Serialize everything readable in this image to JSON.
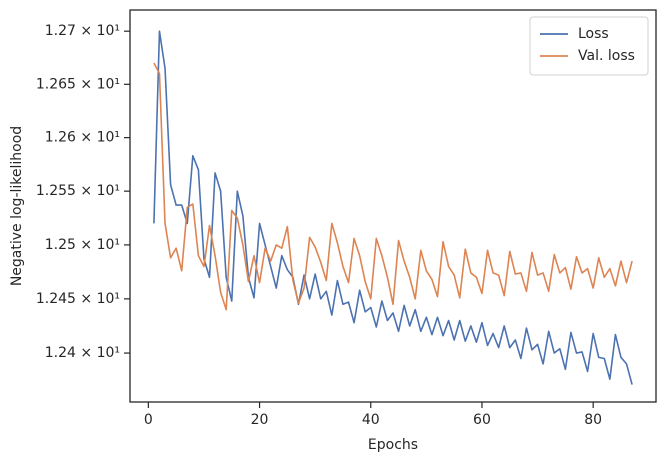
{
  "chart_data": {
    "type": "line",
    "xlabel": "Epochs",
    "ylabel": "Negative log-likelihood",
    "x": [
      1,
      2,
      3,
      4,
      5,
      6,
      7,
      8,
      9,
      10,
      11,
      12,
      13,
      14,
      15,
      16,
      17,
      18,
      19,
      20,
      21,
      22,
      23,
      24,
      25,
      26,
      27,
      28,
      29,
      30,
      31,
      32,
      33,
      34,
      35,
      36,
      37,
      38,
      39,
      40,
      41,
      42,
      43,
      44,
      45,
      46,
      47,
      48,
      49,
      50,
      51,
      52,
      53,
      54,
      55,
      56,
      57,
      58,
      59,
      60,
      61,
      62,
      63,
      64,
      65,
      66,
      67,
      68,
      69,
      70,
      71,
      72,
      73,
      74,
      75,
      76,
      77,
      78,
      79,
      80,
      81,
      82,
      83,
      84,
      85,
      86,
      87
    ],
    "series": [
      {
        "name": "Loss",
        "color": "#4c72b0",
        "values": [
          12.52,
          12.7,
          12.665,
          12.556,
          12.537,
          12.537,
          12.52,
          12.583,
          12.57,
          12.487,
          12.47,
          12.567,
          12.55,
          12.47,
          12.448,
          12.55,
          12.527,
          12.47,
          12.451,
          12.52,
          12.5,
          12.48,
          12.46,
          12.49,
          12.477,
          12.47,
          12.445,
          12.472,
          12.45,
          12.473,
          12.45,
          12.457,
          12.435,
          12.467,
          12.445,
          12.447,
          12.428,
          12.458,
          12.438,
          12.442,
          12.424,
          12.448,
          12.43,
          12.437,
          12.42,
          12.444,
          12.425,
          12.44,
          12.42,
          12.433,
          12.417,
          12.433,
          12.416,
          12.43,
          12.412,
          12.43,
          12.411,
          12.425,
          12.41,
          12.428,
          12.407,
          12.418,
          12.405,
          12.425,
          12.405,
          12.412,
          12.395,
          12.423,
          12.403,
          12.408,
          12.39,
          12.42,
          12.4,
          12.404,
          12.385,
          12.419,
          12.4,
          12.401,
          12.383,
          12.418,
          12.396,
          12.395,
          12.376,
          12.417,
          12.396,
          12.39,
          12.371
        ]
      },
      {
        "name": "Val. loss",
        "color": "#dd8452",
        "values": [
          12.67,
          12.66,
          12.52,
          12.488,
          12.497,
          12.476,
          12.535,
          12.538,
          12.49,
          12.48,
          12.518,
          12.49,
          12.456,
          12.44,
          12.532,
          12.525,
          12.5,
          12.466,
          12.49,
          12.465,
          12.497,
          12.485,
          12.5,
          12.497,
          12.517,
          12.467,
          12.446,
          12.46,
          12.507,
          12.498,
          12.484,
          12.467,
          12.52,
          12.502,
          12.48,
          12.465,
          12.506,
          12.49,
          12.466,
          12.45,
          12.506,
          12.49,
          12.47,
          12.445,
          12.504,
          12.485,
          12.47,
          12.45,
          12.495,
          12.476,
          12.468,
          12.452,
          12.503,
          12.48,
          12.472,
          12.451,
          12.496,
          12.474,
          12.47,
          12.455,
          12.495,
          12.474,
          12.472,
          12.453,
          12.494,
          12.473,
          12.474,
          12.457,
          12.493,
          12.472,
          12.474,
          12.457,
          12.491,
          12.474,
          12.479,
          12.459,
          12.489,
          12.474,
          12.478,
          12.46,
          12.488,
          12.47,
          12.478,
          12.462,
          12.485,
          12.465,
          12.485
        ]
      }
    ],
    "xlim": [
      -3.3,
      91.3
    ],
    "xticks": [
      0,
      20,
      40,
      60,
      80
    ],
    "ylim": [
      12.355,
      12.72
    ],
    "ylog": true,
    "yticks": [
      {
        "value": 12.4,
        "label": "1.24 × 10¹"
      },
      {
        "value": 12.45,
        "label": "1.245 × 10¹"
      },
      {
        "value": 12.5,
        "label": "1.25 × 10¹"
      },
      {
        "value": 12.55,
        "label": "1.255 × 10¹"
      },
      {
        "value": 12.6,
        "label": "1.26 × 10¹"
      },
      {
        "value": 12.65,
        "label": "1.265 × 10¹"
      },
      {
        "value": 12.7,
        "label": "1.27 × 10¹"
      }
    ],
    "legend": "upper right",
    "grid": false
  }
}
